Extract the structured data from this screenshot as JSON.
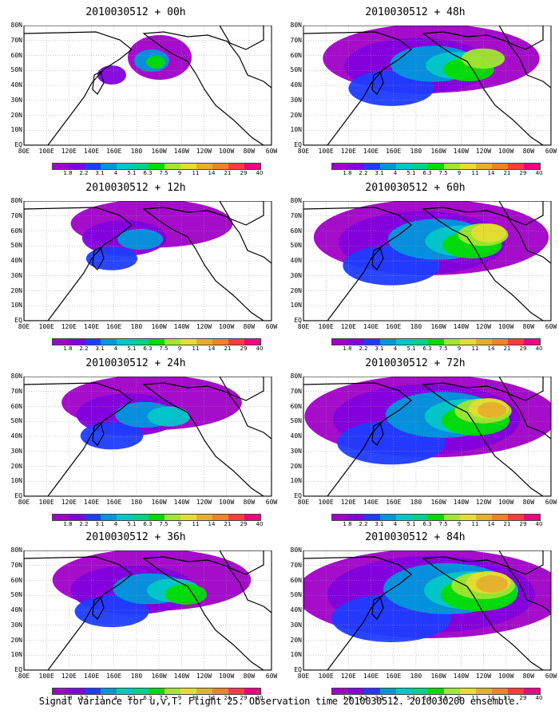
{
  "caption": "Signal Variance for u,v,T. Flight 25. Observation time 2010030512. 2010030200 ensemble.",
  "lat_labels": [
    "80N",
    "70N",
    "60N",
    "50N",
    "40N",
    "30N",
    "20N",
    "10N",
    "EQ"
  ],
  "lon_labels": [
    "80E",
    "100E",
    "120E",
    "140E",
    "160E",
    "180",
    "160W",
    "140W",
    "120W",
    "100W",
    "80W",
    "60W"
  ],
  "colorbar": {
    "labels": [
      "1.8",
      "2.2",
      "3.1",
      "4",
      "5.1",
      "6.3",
      "7.5",
      "9",
      "11",
      "14",
      "21",
      "29",
      "40"
    ],
    "colors": [
      "#a000c8",
      "#8200dc",
      "#1e3cff",
      "#0096dc",
      "#00c8c8",
      "#00d28c",
      "#00dc00",
      "#a0e632",
      "#e6dc32",
      "#e6af2d",
      "#f08228",
      "#fa3c3c",
      "#f00082"
    ]
  },
  "panels": [
    {
      "id": "p00",
      "title": "2010030512 + 00h",
      "spread": 0
    },
    {
      "id": "p48",
      "title": "2010030512 + 48h",
      "spread": 4
    },
    {
      "id": "p12",
      "title": "2010030512 + 12h",
      "spread": 1
    },
    {
      "id": "p60",
      "title": "2010030512 + 60h",
      "spread": 5
    },
    {
      "id": "p24",
      "title": "2010030512 + 24h",
      "spread": 2
    },
    {
      "id": "p72",
      "title": "2010030512 + 72h",
      "spread": 6
    },
    {
      "id": "p36",
      "title": "2010030512 + 36h",
      "spread": 3
    },
    {
      "id": "p84",
      "title": "2010030512 + 84h",
      "spread": 7
    }
  ]
}
